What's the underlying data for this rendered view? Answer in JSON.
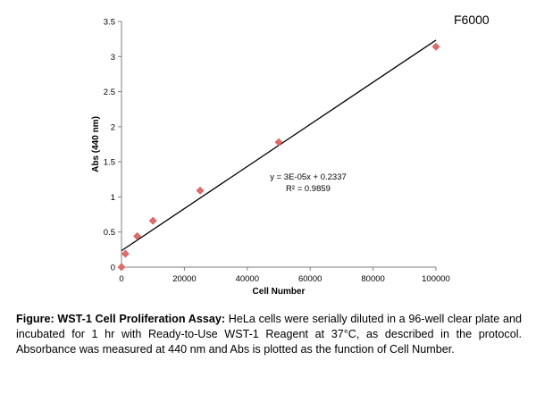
{
  "corner_label": "F6000",
  "caption": {
    "lead": "Figure: WST-1 Cell Proliferation Assay:",
    "body": "HeLa cells were serially diluted in a 96-well clear plate and incubated for 1 hr with Ready-to-Use WST-1 Reagent at 37°C, as described in the protocol. Absorbance was measured at 440 nm and Abs is plotted as the function of Cell Number."
  },
  "chart_data": {
    "type": "scatter",
    "title": "",
    "xlabel": "Cell Number",
    "ylabel": "Abs (440 nm)",
    "xlim": [
      0,
      100000
    ],
    "ylim": [
      0,
      3.5
    ],
    "x_ticks": [
      0,
      20000,
      40000,
      60000,
      80000,
      100000
    ],
    "x_tick_labels": [
      "0",
      "20000",
      "40000",
      "60000",
      "80000",
      "100000"
    ],
    "y_ticks": [
      0,
      0.5,
      1,
      1.5,
      2,
      2.5,
      3,
      3.5
    ],
    "y_tick_labels": [
      "0",
      "0.5",
      "1",
      "1.5",
      "2",
      "2.5",
      "3",
      "3.5"
    ],
    "grid": false,
    "legend": "none",
    "marker_color": "#e06c6c",
    "marker_shape": "diamond",
    "series": [
      {
        "x": [
          0,
          1250,
          5000,
          10000,
          25000,
          50000,
          100000
        ],
        "y": [
          0.0,
          0.19,
          0.44,
          0.66,
          1.09,
          1.78,
          3.14
        ]
      }
    ],
    "trendline": {
      "type": "linear",
      "slope": 3e-05,
      "intercept": 0.2337,
      "x_range": [
        0,
        100000
      ],
      "equation_label": "y = 3E-05x + 0.2337",
      "r2_label": "R² = 0.9859",
      "color": "#000000"
    }
  }
}
